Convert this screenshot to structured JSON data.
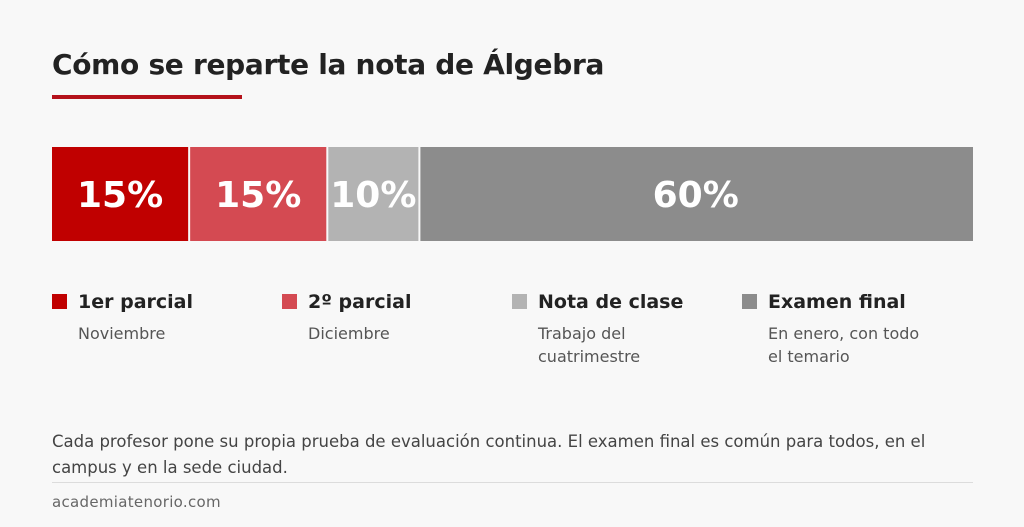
{
  "title": "Cómo se reparte la nota de Álgebra",
  "colors": {
    "accent": "#b5121b"
  },
  "chart_data": {
    "type": "bar",
    "orientation": "horizontal-stacked",
    "categories": [
      "1er parcial",
      "2º parcial",
      "Nota de clase",
      "Examen final"
    ],
    "values": [
      15,
      15,
      10,
      60
    ],
    "labels": [
      "15%",
      "15%",
      "10%",
      "60%"
    ],
    "unit": "%",
    "colors": [
      "#c00000",
      "#d44a52",
      "#b3b3b3",
      "#8c8c8c"
    ],
    "descriptions": [
      "Noviembre",
      "Diciembre",
      "Trabajo del cuatrimestre",
      "En enero, con todo el temario"
    ],
    "legend": "bottom",
    "grid": false
  },
  "note": "Cada profesor pone su propia prueba de evaluación continua. El examen final es común para todos, en el campus y en la sede ciudad.",
  "footer": {
    "site": "academiatenorio.com"
  }
}
